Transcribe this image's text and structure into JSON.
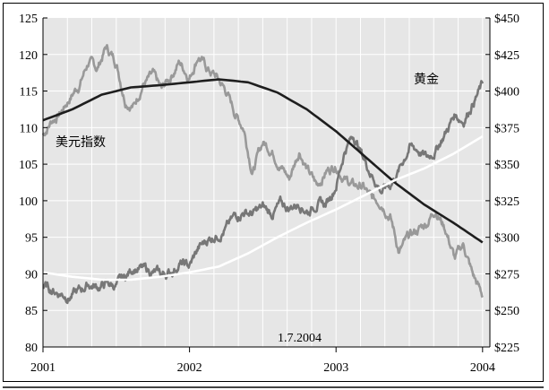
{
  "chart_data": {
    "type": "line",
    "title": "",
    "x_ticks": [
      "2001",
      "2002",
      "2003",
      "2004"
    ],
    "x_range": [
      2001.0,
      2004.05
    ],
    "left_axis": {
      "label": "",
      "range": [
        80,
        125
      ],
      "ticks": [
        "80",
        "85",
        "90",
        "95",
        "100",
        "105",
        "110",
        "115",
        "120",
        "125"
      ]
    },
    "right_axis": {
      "label": "",
      "range": [
        225,
        450
      ],
      "ticks": [
        "$225",
        "$250",
        "$275",
        "$300",
        "$325",
        "$350",
        "$375",
        "$400",
        "$425",
        "$450"
      ]
    },
    "grid": true,
    "annotations": {
      "dollar_index": "美元指数",
      "gold": "黄金",
      "date": "1.7.2004"
    },
    "series": [
      {
        "name": "美元指数",
        "axis": "left",
        "style": "noisy",
        "color": "#999999",
        "x": [
          2001.0,
          2001.06,
          2001.12,
          2001.18,
          2001.25,
          2001.31,
          2001.37,
          2001.43,
          2001.5,
          2001.56,
          2001.62,
          2001.68,
          2001.75,
          2001.81,
          2001.87,
          2001.93,
          2002.0,
          2002.06,
          2002.12,
          2002.18,
          2002.25,
          2002.31,
          2002.37,
          2002.43,
          2002.5,
          2002.56,
          2002.62,
          2002.68,
          2002.75,
          2002.81,
          2002.87,
          2002.93,
          2003.0,
          2003.06,
          2003.12,
          2003.18,
          2003.25,
          2003.31,
          2003.37,
          2003.43,
          2003.5,
          2003.56,
          2003.62,
          2003.68,
          2003.75,
          2003.81,
          2003.87,
          2003.93,
          2004.0
        ],
        "values": [
          109,
          111,
          112,
          114,
          116,
          119,
          118,
          121,
          119,
          114,
          113,
          116,
          117,
          115,
          117,
          119,
          117,
          120,
          118,
          117,
          115,
          112,
          110,
          104,
          108,
          107,
          105,
          103,
          107,
          104,
          102,
          104,
          105,
          103,
          102,
          102,
          100,
          100,
          98,
          93,
          95,
          96,
          97,
          99,
          96,
          92,
          94,
          90,
          87
        ]
      },
      {
        "name": "黄金",
        "axis": "right",
        "style": "noisy",
        "color": "#777777",
        "x": [
          2001.0,
          2001.06,
          2001.12,
          2001.18,
          2001.25,
          2001.31,
          2001.37,
          2001.43,
          2001.5,
          2001.56,
          2001.62,
          2001.68,
          2001.75,
          2001.81,
          2001.87,
          2001.93,
          2002.0,
          2002.06,
          2002.12,
          2002.18,
          2002.25,
          2002.31,
          2002.37,
          2002.43,
          2002.5,
          2002.56,
          2002.62,
          2002.68,
          2002.75,
          2002.81,
          2002.87,
          2002.93,
          2003.0,
          2003.06,
          2003.12,
          2003.18,
          2003.25,
          2003.31,
          2003.37,
          2003.43,
          2003.5,
          2003.56,
          2003.62,
          2003.68,
          2003.75,
          2003.81,
          2003.87,
          2003.93,
          2004.0
        ],
        "values": [
          266,
          264,
          262,
          260,
          263,
          268,
          266,
          268,
          267,
          272,
          280,
          278,
          276,
          274,
          276,
          282,
          280,
          292,
          298,
          302,
          306,
          314,
          318,
          316,
          320,
          316,
          322,
          320,
          324,
          318,
          324,
          322,
          336,
          360,
          370,
          356,
          342,
          332,
          336,
          346,
          362,
          360,
          354,
          360,
          372,
          384,
          380,
          392,
          404
        ]
      },
      {
        "name": "",
        "axis": "left",
        "style": "smooth",
        "color": "#1e1e1e",
        "x": [
          2001.0,
          2001.2,
          2001.4,
          2001.6,
          2001.8,
          2002.0,
          2002.2,
          2002.4,
          2002.6,
          2002.8,
          2003.0,
          2003.2,
          2003.4,
          2003.6,
          2003.8,
          2004.0
        ],
        "values": [
          111,
          112.5,
          114.5,
          115.5,
          115.8,
          116.2,
          116.6,
          116.2,
          114.8,
          112.5,
          109.5,
          106,
          102.5,
          99.5,
          97,
          94.3
        ]
      },
      {
        "name": "",
        "axis": "right",
        "style": "smooth",
        "color": "#ffffff",
        "x": [
          2001.0,
          2001.2,
          2001.4,
          2001.6,
          2001.8,
          2002.0,
          2002.2,
          2002.4,
          2002.6,
          2002.8,
          2003.0,
          2003.2,
          2003.4,
          2003.6,
          2003.8,
          2004.0
        ],
        "values": [
          276,
          273,
          271,
          271,
          273,
          276,
          280,
          289,
          300,
          310,
          319,
          329,
          339,
          347,
          357,
          369
        ]
      }
    ]
  }
}
